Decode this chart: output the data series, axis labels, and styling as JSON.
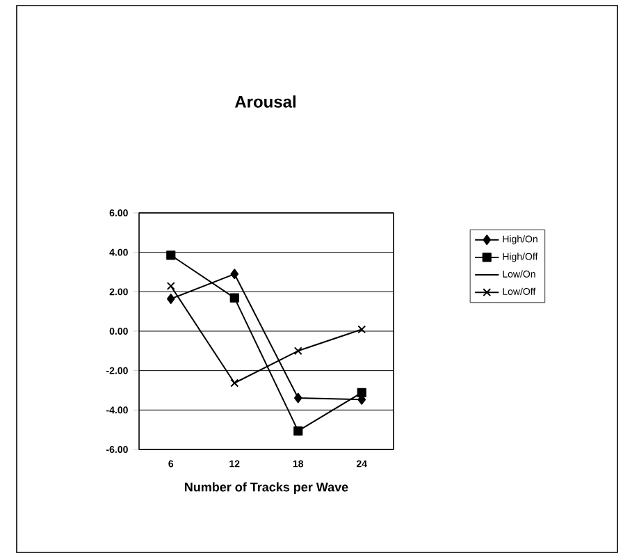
{
  "chart_data": {
    "type": "line",
    "title": "Arousal",
    "xlabel": "Number of Tracks per Wave",
    "categories": [
      "6",
      "12",
      "18",
      "24"
    ],
    "series": [
      {
        "name": "High/On",
        "color": "#000000",
        "marker": "diamond",
        "values": [
          1.64,
          2.9,
          -3.39,
          -3.47
        ]
      },
      {
        "name": "High/Off",
        "color": "#000000",
        "marker": "square",
        "values": [
          3.85,
          1.69,
          -5.06,
          -3.12
        ]
      },
      {
        "name": "Low/On",
        "marker": "none",
        "values": [
          null,
          null,
          null,
          null
        ]
      },
      {
        "name": "Low/Off",
        "color": "#000000",
        "marker": "cross",
        "values": [
          2.29,
          -2.63,
          -1.0,
          0.09
        ]
      }
    ],
    "ylim": [
      -6,
      6
    ],
    "yticks": [
      {
        "value": -6,
        "label": "-6.00"
      },
      {
        "value": -4,
        "label": "-4.00"
      },
      {
        "value": -2,
        "label": "-2.00"
      },
      {
        "value": 0,
        "label": "0.00"
      },
      {
        "value": 2,
        "label": "2.00"
      },
      {
        "value": 4,
        "label": "4.00"
      },
      {
        "value": 6,
        "label": "6.00"
      }
    ],
    "grid": "y",
    "legend": "right"
  }
}
